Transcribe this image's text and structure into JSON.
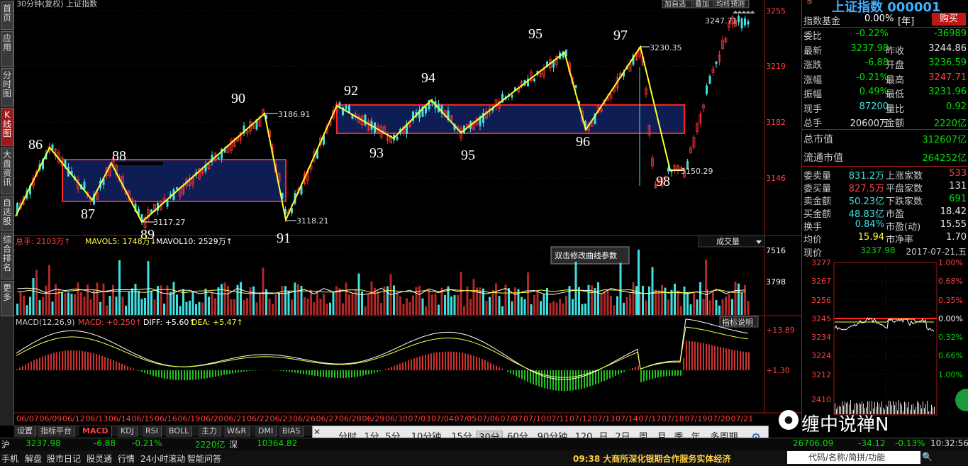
{
  "chart_header": {
    "title": "30分钟(复权) 上证指数",
    "btn_add": "加自选",
    "btn_overlay": "叠加",
    "btn_ma": "均线",
    "btn_predict": "预测"
  },
  "price_axis": {
    "ticks": [
      "3255",
      "3219",
      "3182",
      "3146"
    ]
  },
  "vol_axis": {
    "ticks": [
      "7516",
      "3798"
    ]
  },
  "macd_axis": {
    "ticks": [
      "+13.89",
      "+1.30"
    ]
  },
  "annotations": {
    "waves": [
      "86",
      "87",
      "88",
      "89",
      "90",
      "91",
      "92",
      "93",
      "94",
      "95",
      "95",
      "96",
      "97",
      "98"
    ],
    "prices": [
      "3117.27",
      "3186.91",
      "3118.21",
      "3230.35",
      "3150.29",
      "3247.71"
    ]
  },
  "volume_header": {
    "total": "总手: 2103万↑",
    "mavol5": "MAVOL5: 1748万↓",
    "mavol10": "MAVOL10: 2529万↑",
    "dropdown": "成交量",
    "tooltip": "双击修改曲线参数"
  },
  "macd_header": {
    "name": "MACD(12,26,9)",
    "macd": "MACD: +0.250↑",
    "diff": "DIFF: +5.60↑",
    "dea": "DEA: +5.47↑",
    "button": "指标说明"
  },
  "date_axis": [
    "06/07",
    "06/09",
    "06/12",
    "06/13",
    "06/14",
    "06/15",
    "06/16",
    "06/19",
    "06/20",
    "06/21",
    "06/22",
    "06/23",
    "06/26",
    "06/27",
    "06/28",
    "06/29",
    "06/30",
    "07/03",
    "07/04",
    "07/05",
    "07/06",
    "07/07",
    "07/10",
    "07/11",
    "07/12",
    "07/13",
    "07/14",
    "07/17",
    "07/18",
    "07/19",
    "07/20",
    "07/21"
  ],
  "left_tabs": [
    "首页",
    "应用",
    "分时图",
    "K线图",
    "大盘资讯",
    "自选股",
    "综合排名",
    "更多"
  ],
  "bottom_tabs": [
    "设置",
    "指标平台",
    "MACD",
    "KDJ",
    "RSI",
    "BOLL",
    "主力",
    "W&R",
    "DMI",
    "BIAS"
  ],
  "periods": [
    "分时",
    "1分",
    "5分",
    "10分钟",
    "15分",
    "30分",
    "60分",
    "90分钟",
    "120",
    "日",
    "2日",
    "周",
    "月",
    "季",
    "年",
    "多周期"
  ],
  "right_panel": {
    "title": "上证指数 000001",
    "fund_label": "指数基金",
    "fund_value": "0.00%",
    "fund_unit": "[年]",
    "buy": "购买",
    "rows": [
      {
        "l1": "委比",
        "v1": "-0.22%",
        "l2": "",
        "v2": "-36989",
        "c1": "gr",
        "c2": "gr"
      },
      {
        "l1": "最新",
        "v1": "3237.98",
        "l2": "昨收",
        "v2": "3244.86",
        "c1": "gr",
        "c2": "wh"
      },
      {
        "l1": "涨跌",
        "v1": "-6.88",
        "l2": "开盘",
        "v2": "3236.59",
        "c1": "gr",
        "c2": "gr"
      },
      {
        "l1": "涨幅",
        "v1": "-0.21%",
        "l2": "最高",
        "v2": "3247.71",
        "c1": "gr",
        "c2": "hl"
      },
      {
        "l1": "振幅",
        "v1": "0.49%",
        "l2": "最低",
        "v2": "3231.96",
        "c1": "gr",
        "c2": "gr"
      },
      {
        "l1": "现手",
        "v1": "87200",
        "l2": "量比",
        "v2": "0.92",
        "c1": "cy",
        "c2": "gr"
      },
      {
        "l1": "总手",
        "v1": "20600万",
        "l2": "金额",
        "v2": "2220亿",
        "c1": "wh",
        "c2": "gr"
      }
    ],
    "cap_rows": [
      {
        "label": "总市值",
        "value": "312607亿"
      },
      {
        "label": "流通市值",
        "value": "264252亿"
      }
    ],
    "stats": [
      {
        "l1": "委卖量",
        "v1": "831.2万",
        "l2": "上涨家数",
        "v2": "533",
        "c1": "cy",
        "c2": "hl"
      },
      {
        "l1": "委买量",
        "v1": "827.5万",
        "l2": "平盘家数",
        "v2": "131",
        "c1": "hl",
        "c2": "wh"
      },
      {
        "l1": "卖金额",
        "v1": "50.23亿",
        "l2": "下跌家数",
        "v2": "691",
        "c1": "cy",
        "c2": "gr"
      },
      {
        "l1": "买金额",
        "v1": "48.83亿",
        "l2": "市盈",
        "v2": "18.42",
        "c1": "cy",
        "c2": "wh"
      },
      {
        "l1": "换手",
        "v1": "0.84%",
        "l2": "市盈(动)",
        "v2": "15.55",
        "c1": "cy",
        "c2": "wh"
      },
      {
        "l1": "均价",
        "v1": "15.94",
        "l2": "市净率",
        "v2": "1.70",
        "c1": "yl",
        "c2": "wh"
      }
    ],
    "now_label": "现价",
    "now_value": "3237.98",
    "now_date": "2017-07-21,五",
    "mini_left": [
      "3277",
      "3267",
      "3256",
      "3245",
      "3234",
      "3224",
      "3212",
      "2410"
    ],
    "mini_right": [
      "1.00%",
      "0.68%",
      "0.35%",
      "0.00%",
      "0.32%",
      "0.66%",
      "1.00%"
    ]
  },
  "statusbar": {
    "sh_label": "沪",
    "sh_value": "3237.98",
    "sh_chg": "-6.88",
    "sh_pct": "-0.21%",
    "sh_amt": "2220亿",
    "sz_label": "深",
    "sz_value": "10364.82",
    "r_value": "26706.09",
    "r_chg": "-34.12",
    "r_pct": "-0.13%",
    "time": "10:32:56",
    "links": [
      "手机",
      "解盘",
      "股市日记",
      "股灵通",
      "行情",
      "24小时滚动",
      "智能问答"
    ],
    "news": "09:38 大商所深化银期合作服务实体经济",
    "search": "代码/名称/简拼/功能",
    "watermark": "缠中说禅N"
  }
}
